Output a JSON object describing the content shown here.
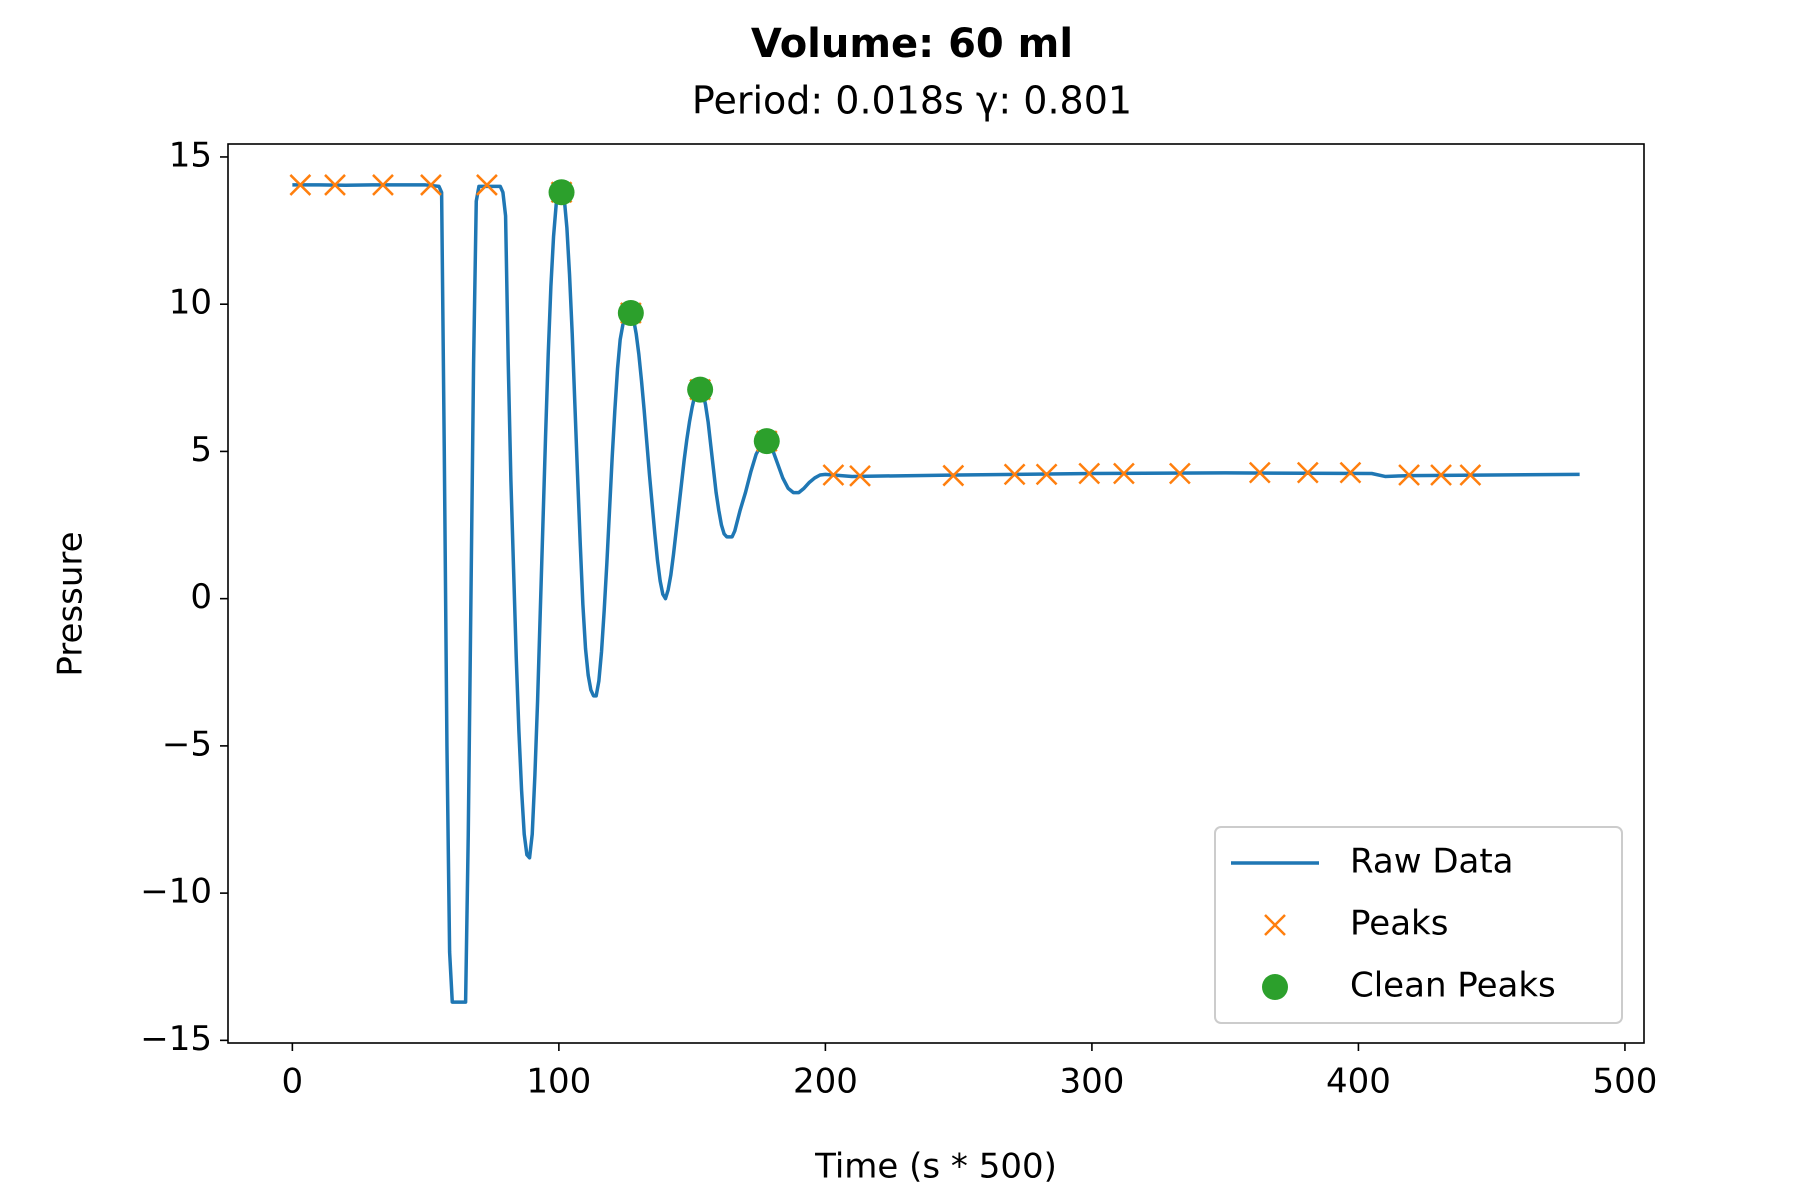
{
  "chart_data": {
    "type": "line",
    "title": "Volume: 60 ml",
    "subtitle": "Period: 0.018s γ: 0.801",
    "xlabel": "Time (s * 500)",
    "ylabel": "Pressure",
    "xlim": [
      -24.15,
      507.15
    ],
    "ylim": [
      -15.09,
      15.44
    ],
    "xticks": [
      0,
      100,
      200,
      300,
      400,
      500
    ],
    "yticks": [
      {
        "value": -15,
        "label": "−15"
      },
      {
        "value": -10,
        "label": "−10"
      },
      {
        "value": -5,
        "label": "−5"
      },
      0,
      5,
      10,
      15
    ],
    "legend": "lower right",
    "series": [
      {
        "name": "Raw Data",
        "color": "#1f77b4",
        "marker": "line",
        "x": [
          0,
          10,
          20,
          30,
          40,
          50,
          55,
          56,
          57,
          58,
          59,
          60,
          65,
          66,
          67,
          68,
          69,
          70,
          78,
          79,
          80,
          81,
          82,
          83,
          84,
          85,
          86,
          87,
          88,
          89,
          90,
          91,
          92,
          93,
          94,
          95,
          96,
          97,
          98,
          99,
          100,
          101,
          102,
          103,
          104,
          105,
          106,
          107,
          108,
          109,
          110,
          111,
          112,
          113,
          114,
          115,
          116,
          117,
          118,
          119,
          120,
          121,
          122,
          123,
          124,
          125,
          126,
          127,
          128,
          129,
          130,
          131,
          132,
          133,
          134,
          135,
          136,
          137,
          138,
          139,
          140,
          141,
          142,
          143,
          144,
          145,
          146,
          147,
          148,
          149,
          150,
          151,
          152,
          153,
          154,
          155,
          156,
          157,
          158,
          159,
          160,
          161,
          162,
          163,
          165,
          166,
          168,
          170,
          172,
          174,
          176,
          178,
          180,
          182,
          184,
          186,
          188,
          190,
          192,
          194,
          196,
          198,
          200,
          210,
          250,
          300,
          350,
          405,
          410,
          420,
          483
        ],
        "values": [
          14.05,
          14.05,
          14.04,
          14.05,
          14.05,
          14.05,
          14.0,
          13.8,
          5,
          -5,
          -12,
          -13.7,
          -13.7,
          -8,
          0,
          8,
          13.5,
          14.0,
          14.0,
          13.8,
          13.0,
          8,
          4,
          1,
          -2,
          -4.5,
          -6.5,
          -8,
          -8.7,
          -8.8,
          -8,
          -6,
          -3.5,
          -0.5,
          2.5,
          5.5,
          8.3,
          10.6,
          12.3,
          13.4,
          13.9,
          13.95,
          13.6,
          12.6,
          11,
          9,
          6.6,
          4.2,
          1.9,
          -0.2,
          -1.7,
          -2.6,
          -3.1,
          -3.3,
          -3.3,
          -2.8,
          -1.8,
          -0.4,
          1.2,
          3,
          4.8,
          6.4,
          7.8,
          8.8,
          9.3,
          9.6,
          9.7,
          9.7,
          9.5,
          9.0,
          8.3,
          7.4,
          6.4,
          5.3,
          4.2,
          3.2,
          2.2,
          1.3,
          0.6,
          0.15,
          0.0,
          0.3,
          0.8,
          1.5,
          2.3,
          3.1,
          3.9,
          4.7,
          5.4,
          6.0,
          6.5,
          6.9,
          7.1,
          7.15,
          7.0,
          6.6,
          6.0,
          5.2,
          4.4,
          3.6,
          3.0,
          2.5,
          2.2,
          2.1,
          2.1,
          2.3,
          3.0,
          3.6,
          4.3,
          4.9,
          5.25,
          5.35,
          5.1,
          4.6,
          4.1,
          3.75,
          3.6,
          3.6,
          3.75,
          3.95,
          4.1,
          4.2,
          4.22,
          4.15,
          4.2,
          4.25,
          4.27,
          4.25,
          4.15,
          4.18,
          4.22
        ]
      },
      {
        "name": "Peaks",
        "color": "#ff7f0e",
        "marker": "x",
        "x": [
          3,
          16,
          34,
          52,
          73,
          101,
          127,
          153,
          178,
          203,
          213,
          248,
          271,
          283,
          299,
          312,
          333,
          363,
          381,
          397,
          419,
          431,
          442
        ],
        "values": [
          14.05,
          14.05,
          14.05,
          14.05,
          14.05,
          13.8,
          9.7,
          7.1,
          5.35,
          4.2,
          4.17,
          4.18,
          4.22,
          4.22,
          4.25,
          4.25,
          4.25,
          4.28,
          4.28,
          4.28,
          4.2,
          4.2,
          4.2
        ]
      },
      {
        "name": "Clean Peaks",
        "color": "#2ca02c",
        "marker": "dot",
        "x": [
          101,
          127,
          153,
          178
        ],
        "values": [
          13.8,
          9.7,
          7.1,
          5.35
        ]
      }
    ]
  }
}
